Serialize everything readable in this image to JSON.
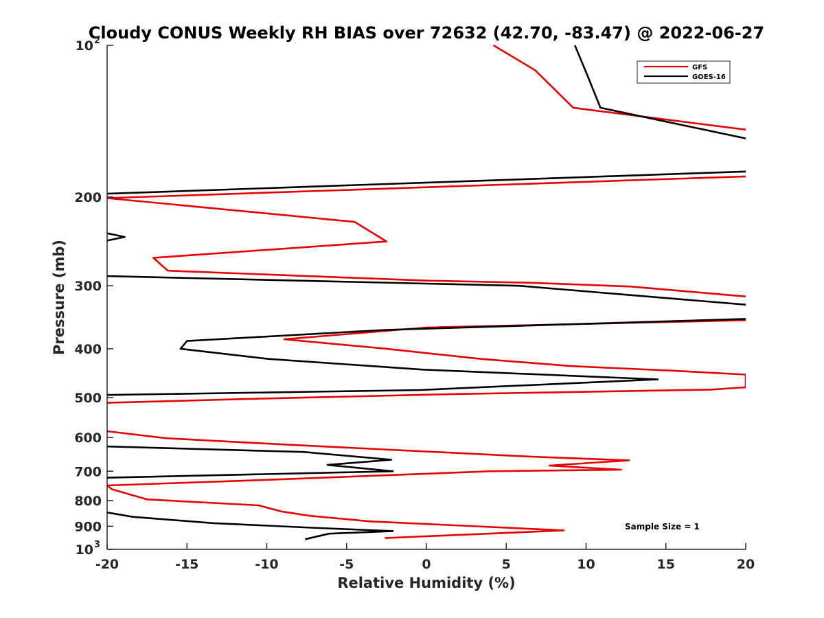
{
  "chart_data": {
    "type": "line",
    "title": "Cloudy CONUS Weekly RH BIAS over 72632 (42.70, -83.47) @ 2022-06-27",
    "xlabel": "Relative Humidity (%)",
    "ylabel": "Pressure (mb)",
    "xlim": [
      -20,
      20
    ],
    "ylim": [
      100,
      1000
    ],
    "y_scale": "log",
    "y_reversed": true,
    "grid": false,
    "legend_position": "top-right",
    "annotation": "Sample Size = 1",
    "x_ticks": [
      "-20",
      "-15",
      "-10",
      "-5",
      "0",
      "5",
      "10",
      "15",
      "20"
    ],
    "y_ticks": [
      {
        "value": 100,
        "base": "10",
        "exp": "2"
      },
      {
        "value": 200,
        "label": "200"
      },
      {
        "value": 300,
        "label": "300"
      },
      {
        "value": 400,
        "label": "400"
      },
      {
        "value": 500,
        "label": "500"
      },
      {
        "value": 600,
        "label": "600"
      },
      {
        "value": 700,
        "label": "700"
      },
      {
        "value": 800,
        "label": "800"
      },
      {
        "value": 900,
        "label": "900"
      },
      {
        "value": 1000,
        "base": "10",
        "exp": "3"
      }
    ],
    "series": [
      {
        "name": "GFS",
        "color": "#e50000",
        "segments": [
          [
            [
              4.2,
              100
            ],
            [
              6.8,
              112
            ],
            [
              9.2,
              133
            ],
            [
              20,
              147
            ]
          ],
          [
            [
              20,
              182
            ],
            [
              -20,
              201
            ],
            [
              -4.5,
              224
            ],
            [
              -2.5,
              245
            ],
            [
              -17.1,
              264
            ],
            [
              -16.2,
              280
            ],
            [
              0,
              293
            ],
            [
              6.7,
              296
            ],
            [
              12.8,
              301
            ],
            [
              20,
              315
            ]
          ],
          [
            [
              20,
              351
            ],
            [
              0,
              363
            ],
            [
              -8.9,
              383
            ],
            [
              -2.5,
              400
            ],
            [
              3.4,
              419
            ],
            [
              9.1,
              433
            ],
            [
              15.3,
              442
            ],
            [
              20,
              450
            ],
            [
              20,
              477
            ],
            [
              17.8,
              482
            ],
            [
              1.7,
              492
            ],
            [
              -10,
              502
            ],
            [
              -20,
              512
            ]
          ],
          [
            [
              -20,
              583
            ],
            [
              -16.3,
              602
            ],
            [
              -8.7,
              620
            ],
            [
              6.6,
              655
            ],
            [
              12.7,
              666
            ],
            [
              7.7,
              682
            ],
            [
              12.2,
              695
            ],
            [
              4,
              700
            ],
            [
              -10,
              728
            ],
            [
              -20,
              747
            ],
            [
              -19.7,
              760
            ],
            [
              -17.5,
              796
            ],
            [
              -10.5,
              818
            ],
            [
              -9.1,
              841
            ],
            [
              -7.3,
              858
            ],
            [
              -3.5,
              880
            ],
            [
              8.6,
              917
            ],
            [
              -2.6,
              950
            ]
          ]
        ]
      },
      {
        "name": "GOES-16",
        "color": "#000000",
        "segments": [
          [
            [
              9.3,
              100
            ],
            [
              10.1,
              115
            ],
            [
              10.9,
              133
            ],
            [
              20,
              153
            ]
          ],
          [
            [
              20,
              178
            ],
            [
              -20,
              197
            ]
          ],
          [
            [
              -20,
              236
            ],
            [
              -18.9,
              240
            ],
            [
              -20,
              244
            ]
          ],
          [
            [
              -20,
              287
            ],
            [
              5.8,
              300
            ],
            [
              20,
              327
            ]
          ],
          [
            [
              20,
              349
            ],
            [
              -2.6,
              367
            ],
            [
              -15,
              386
            ],
            [
              -15.4,
              400
            ],
            [
              -9.9,
              419
            ],
            [
              -0.2,
              440
            ],
            [
              14.5,
              460
            ],
            [
              -0.4,
              483
            ],
            [
              -20,
              494
            ]
          ],
          [
            [
              -20,
              625
            ],
            [
              -7.7,
              641
            ],
            [
              -2.2,
              664
            ],
            [
              -6.2,
              680
            ],
            [
              -2.1,
              700
            ],
            [
              -20,
              721
            ]
          ],
          [
            [
              -20,
              845
            ],
            [
              -18.4,
              862
            ],
            [
              -13.4,
              887
            ],
            [
              -7.2,
              906
            ],
            [
              -2.1,
              920
            ],
            [
              -6.1,
              931
            ],
            [
              -7.6,
              955
            ]
          ]
        ]
      }
    ]
  }
}
